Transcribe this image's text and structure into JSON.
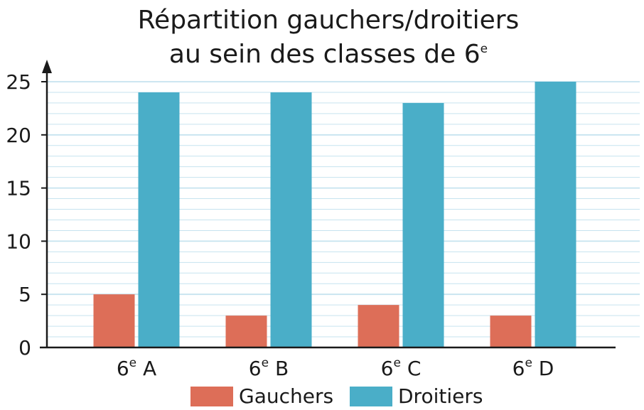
{
  "chart_data": {
    "type": "bar",
    "title": {
      "line1": "Répartition gauchers/droitiers",
      "line2_main": "au sein des classes de 6",
      "line2_sup": "e"
    },
    "categories": [
      {
        "main": "6",
        "sup": "e",
        "rest": " A"
      },
      {
        "main": "6",
        "sup": "e",
        "rest": " B"
      },
      {
        "main": "6",
        "sup": "e",
        "rest": " C"
      },
      {
        "main": "6",
        "sup": "e",
        "rest": " D"
      }
    ],
    "series": [
      {
        "name": "Gauchers",
        "color": "#dd6e58",
        "values": [
          5,
          3,
          4,
          3
        ]
      },
      {
        "name": "Droitiers",
        "color": "#4aaec8",
        "values": [
          24,
          24,
          23,
          25
        ]
      }
    ],
    "ylim": [
      0,
      25
    ],
    "yticks": [
      0,
      5,
      10,
      15,
      20,
      25
    ],
    "minor_grid_step": 1,
    "grid": true,
    "grid_color": "#c6e3ef",
    "legend_position": "bottom"
  }
}
